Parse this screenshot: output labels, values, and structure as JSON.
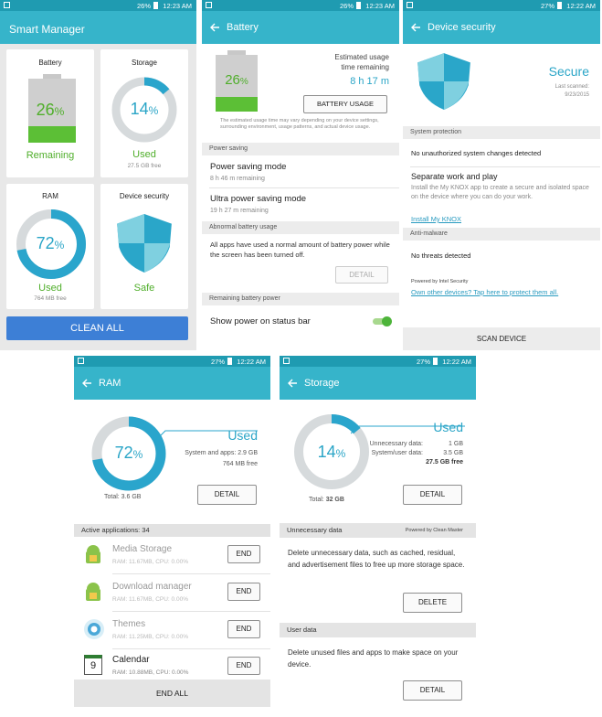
{
  "smart_manager": {
    "status": {
      "battery": "26%",
      "time": "12:23 AM"
    },
    "title": "Smart Manager",
    "battery": {
      "label": "Battery",
      "percent": 26,
      "unit": "%",
      "caption": "Remaining"
    },
    "storage": {
      "label": "Storage",
      "percent": 14,
      "unit": "%",
      "caption": "Used",
      "detail": "27.5 GB free"
    },
    "ram": {
      "label": "RAM",
      "percent": 72,
      "unit": "%",
      "caption": "Used",
      "detail": "764 MB free"
    },
    "security": {
      "label": "Device security",
      "caption": "Safe"
    },
    "button": "CLEAN ALL"
  },
  "battery": {
    "status": {
      "battery": "26%",
      "time": "12:23 AM"
    },
    "title": "Battery",
    "percent": 26,
    "unit": "%",
    "estimate_label": "Estimated usage time remaining",
    "estimate": "8 h 17 m",
    "usage_button": "BATTERY USAGE",
    "note": "The estimated usage time may vary depending on your device settings, surrounding environment, usage patterns, and actual device usage.",
    "power_saving": {
      "header": "Power saving",
      "items": [
        {
          "title": "Power saving mode",
          "detail": "8 h 46 m remaining"
        },
        {
          "title": "Ultra power saving mode",
          "detail": "19 h 27 m remaining"
        }
      ]
    },
    "abnormal": {
      "header": "Abnormal battery usage",
      "text": "All apps have used a normal amount of battery power while the screen has been turned off.",
      "button": "DETAIL"
    },
    "remaining": {
      "header": "Remaining battery power",
      "option": "Show power on status bar"
    }
  },
  "security": {
    "status": {
      "battery": "27%",
      "time": "12:22 AM"
    },
    "title": "Device security",
    "state": "Secure",
    "last_scanned_label": "Last scanned:",
    "last_scanned": "9/23/2015",
    "system_header": "System protection",
    "system_text": "No unauthorized system changes detected",
    "knox_title": "Separate work and play",
    "knox_text": "Install the My KNOX app to create a secure and isolated space on the device where you can do your work.",
    "knox_link": "Install My KNOX",
    "malware_header": "Anti-malware",
    "malware_text": "No threats detected",
    "powered_by": "Powered by Intel Security",
    "devices_link": "Own other devices? Tap here to protect them all.",
    "button": "SCAN DEVICE"
  },
  "ram": {
    "status": {
      "battery": "27%",
      "time": "12:22 AM"
    },
    "title": "RAM",
    "percent": 72,
    "unit": "%",
    "caption": "Used",
    "system": "System and apps: 2.9 GB",
    "free": "764 MB free",
    "total": "Total: 3.6 GB",
    "detail_button": "DETAIL",
    "active_header": "Active applications: 34",
    "apps": [
      {
        "name": "Media Storage",
        "info": "RAM: 11.67MB, CPU: 0.00%",
        "button": "END"
      },
      {
        "name": "Download manager",
        "info": "RAM: 11.67MB, CPU: 0.00%",
        "button": "END"
      },
      {
        "name": "Themes",
        "info": "RAM: 11.25MB, CPU: 0.00%",
        "button": "END"
      },
      {
        "name": "Calendar",
        "info": "RAM: 10.88MB, CPU: 0.00%",
        "button": "END",
        "icon_day": "9"
      }
    ],
    "end_all": "END ALL"
  },
  "storage": {
    "status": {
      "battery": "27%",
      "time": "12:22 AM"
    },
    "title": "Storage",
    "percent": 14,
    "unit": "%",
    "caption": "Used",
    "unnecessary_label": "Unnecessary data:",
    "unnecessary_value": "1 GB",
    "system_label": "System/user data:",
    "system_value": "3.5 GB",
    "free": "27.5 GB free",
    "total_label": "Total:",
    "total_value": "32 GB",
    "detail_button": "DETAIL",
    "unnecessary_header": "Unnecessary data",
    "powered_by": "Powered by Clean Master",
    "unnecessary_text": "Delete unnecessary data, such as cached, residual, and advertisement files to free up more storage space.",
    "delete_button": "DELETE",
    "user_header": "User data",
    "user_text": "Delete unused files and apps to make space on your device.",
    "user_button": "DETAIL"
  }
}
